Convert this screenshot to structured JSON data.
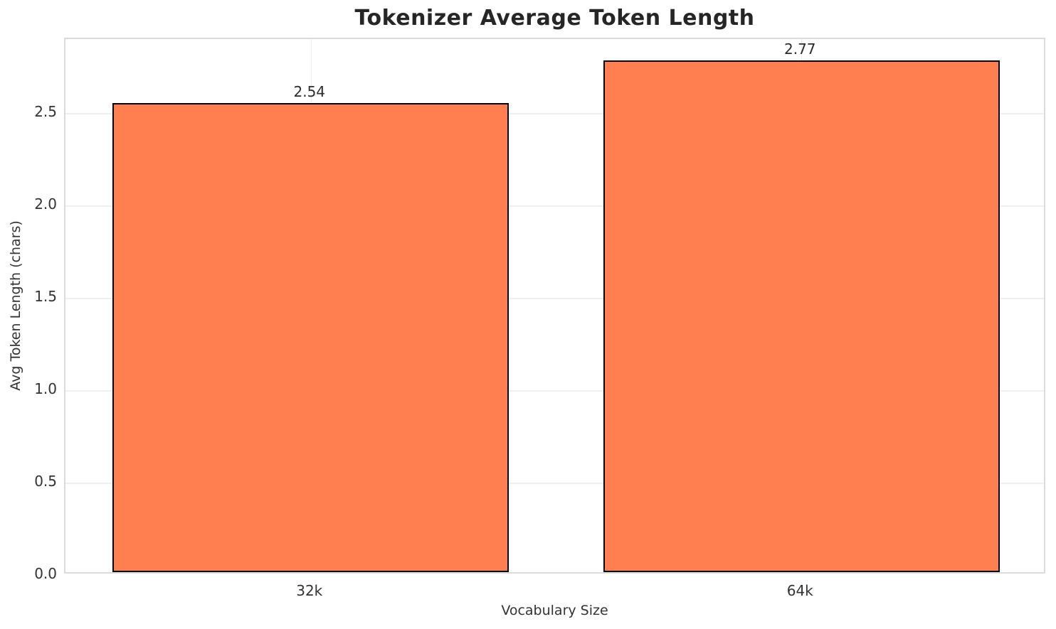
{
  "chart_data": {
    "type": "bar",
    "title": "Tokenizer Average Token Length",
    "categories": [
      "32k",
      "64k"
    ],
    "values": [
      2.54,
      2.77
    ],
    "value_labels": [
      "2.54",
      "2.77"
    ],
    "xlabel": "Vocabulary Size",
    "ylabel": "Avg Token Length (chars)",
    "ylim": [
      0,
      2.9
    ],
    "yticks": [
      0.0,
      0.5,
      1.0,
      1.5,
      2.0,
      2.5
    ],
    "ytick_labels": [
      "0.0",
      "0.5",
      "1.0",
      "1.5",
      "2.0",
      "2.5"
    ],
    "grid": true,
    "legend": null,
    "bar_color": "#FF7F50",
    "bar_edge_color": "#000000",
    "grid_color": "#efefef",
    "spine_color": "#dcdcdc",
    "title_color": "#262626",
    "tick_color": "#333333"
  }
}
